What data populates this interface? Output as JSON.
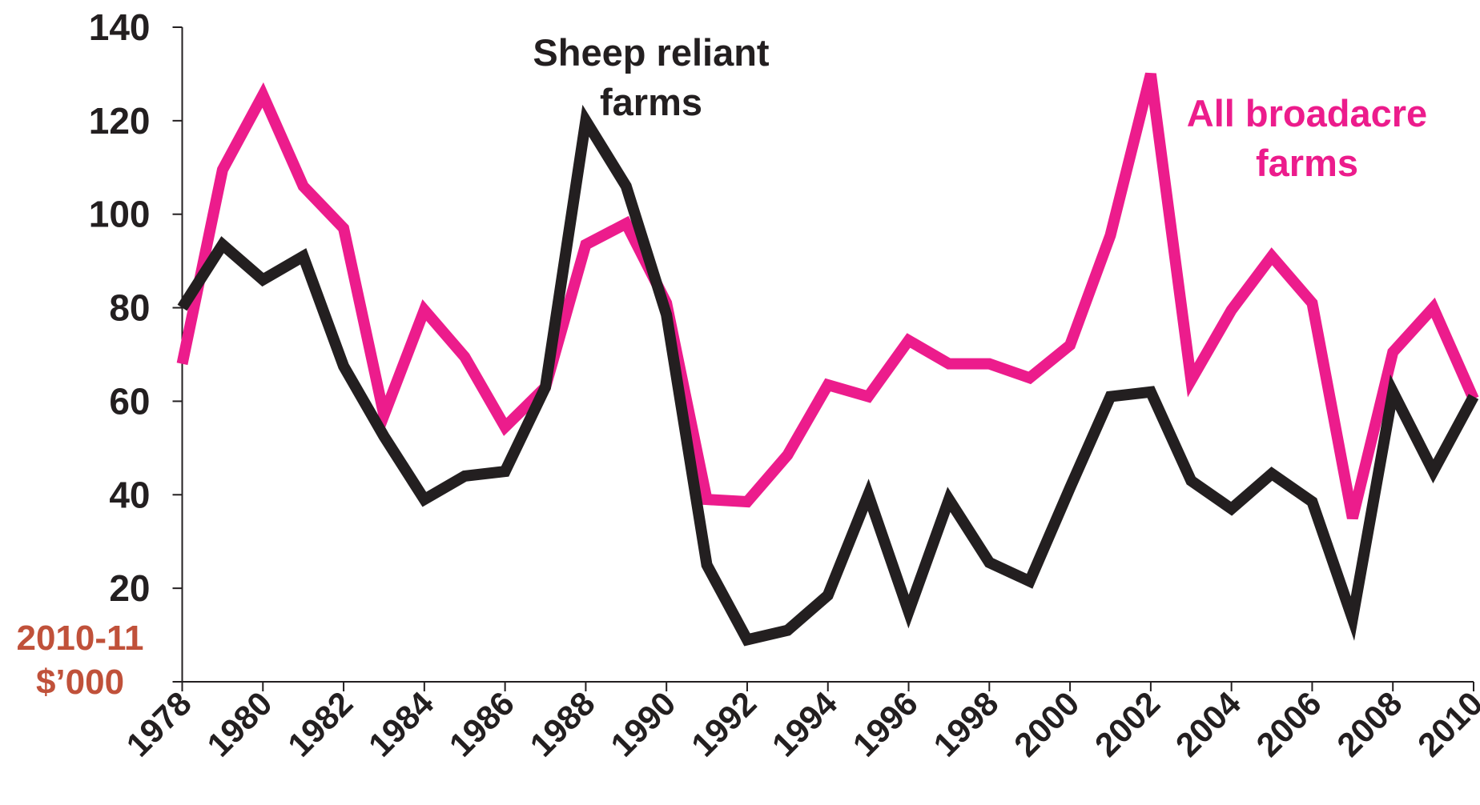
{
  "chart_data": {
    "type": "line",
    "ylabel": [
      "2010-11",
      "$’000"
    ],
    "ylabel_color": "#c0513a",
    "x": [
      1978,
      1979,
      1980,
      1981,
      1982,
      1983,
      1984,
      1985,
      1986,
      1987,
      1988,
      1989,
      1990,
      1991,
      1992,
      1993,
      1994,
      1995,
      1996,
      1997,
      1998,
      1999,
      2000,
      2001,
      2002,
      2003,
      2004,
      2005,
      2006,
      2007,
      2008,
      2009,
      2010
    ],
    "series": [
      {
        "name": [
          "All broadacre",
          "farms"
        ],
        "color": "#ec1c8c",
        "values": [
          68,
          109.5,
          125.5,
          106,
          97,
          57,
          79.5,
          69.5,
          54.5,
          63,
          93.5,
          98,
          81,
          39,
          38.5,
          48.5,
          63.5,
          61,
          73,
          68,
          68,
          65,
          72,
          95.5,
          130,
          64.5,
          79.5,
          91,
          81,
          35,
          70.5,
          80,
          60.5
        ]
      },
      {
        "name": [
          "Sheep reliant",
          "farms"
        ],
        "color": "#231f20",
        "values": [
          80,
          93.5,
          86,
          91,
          67.5,
          52.5,
          39,
          44,
          45,
          63,
          120,
          106,
          78.5,
          25,
          9,
          11,
          18.5,
          40,
          15,
          39,
          25.5,
          21.5,
          41.5,
          61,
          62,
          43,
          37,
          44.5,
          38.5,
          13.5,
          62,
          45,
          61
        ]
      }
    ],
    "xlim": [
      1978,
      2010
    ],
    "xticks": [
      1978,
      1980,
      1982,
      1984,
      1986,
      1988,
      1990,
      1992,
      1994,
      1996,
      1998,
      2000,
      2002,
      2004,
      2006,
      2008,
      2010
    ],
    "ylim": [
      0,
      140
    ],
    "yticks": [
      0,
      20,
      40,
      60,
      80,
      100,
      120,
      140
    ]
  }
}
